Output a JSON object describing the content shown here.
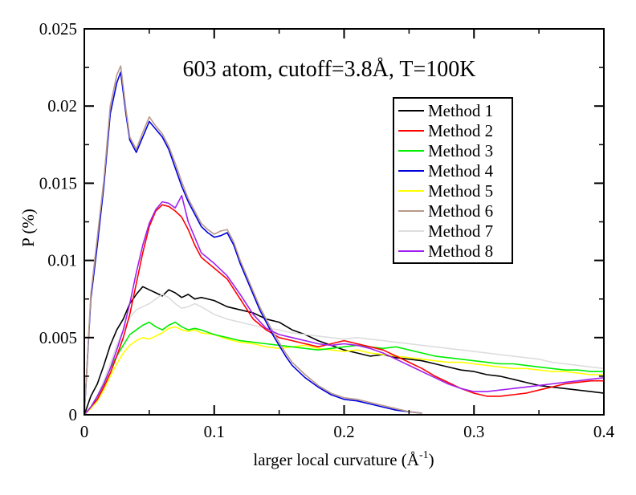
{
  "chart_data": {
    "type": "line",
    "title": "603 atom, cutoff=3.8Å, T=100K",
    "xlabel": "larger local curvature (Å",
    "xlabel_sup": "-1",
    "xlabel_close": ")",
    "ylabel": "P (%)",
    "xlim": [
      0,
      0.4
    ],
    "ylim": [
      0,
      0.025
    ],
    "xticks": [
      "0",
      "0.1",
      "0.2",
      "0.3",
      "0.4"
    ],
    "yticks": [
      "0",
      "0.005",
      "0.01",
      "0.015",
      "0.02",
      "0.025"
    ],
    "grid": false,
    "legend_position": "top-right",
    "series": [
      {
        "name": "Method 1",
        "color": "#000000",
        "z": 1,
        "x": [
          0,
          0.005,
          0.01,
          0.015,
          0.02,
          0.025,
          0.03,
          0.035,
          0.04,
          0.045,
          0.05,
          0.055,
          0.06,
          0.065,
          0.07,
          0.075,
          0.08,
          0.085,
          0.09,
          0.1,
          0.11,
          0.12,
          0.13,
          0.14,
          0.15,
          0.16,
          0.17,
          0.18,
          0.19,
          0.2,
          0.21,
          0.22,
          0.23,
          0.24,
          0.25,
          0.26,
          0.27,
          0.28,
          0.29,
          0.3,
          0.31,
          0.32,
          0.33,
          0.34,
          0.35,
          0.36,
          0.37,
          0.38,
          0.39,
          0.4
        ],
        "y": [
          0,
          0.0012,
          0.002,
          0.0032,
          0.0045,
          0.0055,
          0.0062,
          0.0072,
          0.0078,
          0.0083,
          0.0081,
          0.0079,
          0.0077,
          0.0081,
          0.0079,
          0.0076,
          0.0078,
          0.0075,
          0.0076,
          0.0074,
          0.007,
          0.0068,
          0.0066,
          0.0062,
          0.006,
          0.0055,
          0.0052,
          0.0048,
          0.0045,
          0.0042,
          0.004,
          0.0038,
          0.0039,
          0.0037,
          0.0036,
          0.0035,
          0.0033,
          0.0031,
          0.0029,
          0.0028,
          0.0026,
          0.0025,
          0.0023,
          0.0021,
          0.0019,
          0.0018,
          0.0017,
          0.0016,
          0.0015,
          0.0014
        ]
      },
      {
        "name": "Method 2",
        "color": "#ff0000",
        "z": 5,
        "x": [
          0,
          0.005,
          0.01,
          0.015,
          0.02,
          0.025,
          0.03,
          0.035,
          0.04,
          0.045,
          0.05,
          0.055,
          0.06,
          0.065,
          0.07,
          0.075,
          0.08,
          0.085,
          0.09,
          0.1,
          0.11,
          0.12,
          0.13,
          0.14,
          0.15,
          0.16,
          0.17,
          0.18,
          0.19,
          0.2,
          0.21,
          0.22,
          0.23,
          0.24,
          0.25,
          0.26,
          0.27,
          0.28,
          0.29,
          0.3,
          0.31,
          0.32,
          0.33,
          0.34,
          0.35,
          0.36,
          0.37,
          0.38,
          0.39,
          0.4
        ],
        "y": [
          0,
          0.0005,
          0.001,
          0.0018,
          0.0027,
          0.0038,
          0.005,
          0.0065,
          0.0085,
          0.0105,
          0.0122,
          0.0132,
          0.0136,
          0.0135,
          0.0132,
          0.0128,
          0.012,
          0.011,
          0.0102,
          0.0095,
          0.0088,
          0.0075,
          0.0062,
          0.0055,
          0.005,
          0.0048,
          0.0046,
          0.0044,
          0.0046,
          0.0048,
          0.0046,
          0.0044,
          0.0042,
          0.0038,
          0.0034,
          0.003,
          0.0025,
          0.0021,
          0.0017,
          0.0014,
          0.0012,
          0.0012,
          0.0013,
          0.0014,
          0.0016,
          0.0018,
          0.002,
          0.0021,
          0.0022,
          0.0022
        ]
      },
      {
        "name": "Method 3",
        "color": "#00ee00",
        "z": 4,
        "x": [
          0,
          0.005,
          0.01,
          0.015,
          0.02,
          0.025,
          0.03,
          0.035,
          0.04,
          0.045,
          0.05,
          0.055,
          0.06,
          0.065,
          0.07,
          0.075,
          0.08,
          0.085,
          0.09,
          0.1,
          0.11,
          0.12,
          0.13,
          0.14,
          0.15,
          0.16,
          0.17,
          0.18,
          0.19,
          0.2,
          0.21,
          0.22,
          0.23,
          0.24,
          0.25,
          0.26,
          0.27,
          0.28,
          0.29,
          0.3,
          0.31,
          0.32,
          0.33,
          0.34,
          0.35,
          0.36,
          0.37,
          0.38,
          0.39,
          0.4
        ],
        "y": [
          0,
          0.0005,
          0.0012,
          0.002,
          0.003,
          0.0038,
          0.0045,
          0.0052,
          0.0055,
          0.0058,
          0.006,
          0.0057,
          0.0055,
          0.0058,
          0.006,
          0.0057,
          0.0055,
          0.0056,
          0.0055,
          0.0052,
          0.005,
          0.0048,
          0.0047,
          0.0046,
          0.0045,
          0.0044,
          0.0043,
          0.0042,
          0.0043,
          0.0044,
          0.0045,
          0.0044,
          0.0043,
          0.0044,
          0.0042,
          0.004,
          0.0038,
          0.0037,
          0.0036,
          0.0035,
          0.0034,
          0.0033,
          0.0033,
          0.0032,
          0.0031,
          0.003,
          0.0029,
          0.0029,
          0.0028,
          0.0028
        ]
      },
      {
        "name": "Method 4",
        "color": "#0000dd",
        "z": 6,
        "x": [
          0,
          0.005,
          0.01,
          0.015,
          0.02,
          0.025,
          0.028,
          0.032,
          0.035,
          0.04,
          0.045,
          0.05,
          0.055,
          0.06,
          0.065,
          0.07,
          0.075,
          0.08,
          0.085,
          0.09,
          0.095,
          0.1,
          0.105,
          0.11,
          0.115,
          0.12,
          0.125,
          0.13,
          0.135,
          0.14,
          0.145,
          0.15,
          0.155,
          0.16,
          0.17,
          0.18,
          0.19,
          0.2,
          0.21,
          0.22,
          0.23,
          0.24,
          0.25,
          0.26
        ],
        "y": [
          0,
          0.0075,
          0.011,
          0.0148,
          0.0195,
          0.0215,
          0.0222,
          0.0195,
          0.0178,
          0.017,
          0.018,
          0.019,
          0.0185,
          0.018,
          0.0172,
          0.016,
          0.0148,
          0.0138,
          0.013,
          0.0122,
          0.0118,
          0.0115,
          0.0116,
          0.0118,
          0.011,
          0.0098,
          0.0088,
          0.0078,
          0.0068,
          0.006,
          0.0052,
          0.0045,
          0.0038,
          0.0032,
          0.0024,
          0.0018,
          0.0013,
          0.001,
          0.0009,
          0.0007,
          0.0005,
          0.0003,
          0.0002,
          0.0001
        ]
      },
      {
        "name": "Method 5",
        "color": "#ffff00",
        "z": 2,
        "x": [
          0,
          0.005,
          0.01,
          0.015,
          0.02,
          0.025,
          0.03,
          0.035,
          0.04,
          0.045,
          0.05,
          0.055,
          0.06,
          0.065,
          0.07,
          0.075,
          0.08,
          0.085,
          0.09,
          0.1,
          0.11,
          0.12,
          0.13,
          0.14,
          0.15,
          0.16,
          0.17,
          0.18,
          0.19,
          0.2,
          0.21,
          0.22,
          0.23,
          0.24,
          0.25,
          0.26,
          0.27,
          0.28,
          0.29,
          0.3,
          0.31,
          0.32,
          0.33,
          0.34,
          0.35,
          0.36,
          0.37,
          0.38,
          0.39,
          0.4
        ],
        "y": [
          0,
          0.0004,
          0.0009,
          0.0016,
          0.0025,
          0.0033,
          0.004,
          0.0045,
          0.0048,
          0.005,
          0.0049,
          0.0051,
          0.0053,
          0.0056,
          0.0057,
          0.0055,
          0.0054,
          0.0055,
          0.0053,
          0.0052,
          0.0049,
          0.0047,
          0.0046,
          0.0044,
          0.0043,
          0.0044,
          0.0045,
          0.0043,
          0.0042,
          0.0041,
          0.0042,
          0.004,
          0.0039,
          0.0038,
          0.0037,
          0.0036,
          0.0035,
          0.0034,
          0.0034,
          0.0033,
          0.0032,
          0.0031,
          0.003,
          0.003,
          0.0029,
          0.0028,
          0.0028,
          0.0027,
          0.0026,
          0.0026
        ]
      },
      {
        "name": "Method 6",
        "color": "#b8988a",
        "z": 7,
        "x": [
          0,
          0.005,
          0.01,
          0.015,
          0.02,
          0.025,
          0.028,
          0.032,
          0.035,
          0.04,
          0.045,
          0.05,
          0.055,
          0.06,
          0.065,
          0.07,
          0.075,
          0.08,
          0.085,
          0.09,
          0.095,
          0.1,
          0.105,
          0.11,
          0.115,
          0.12,
          0.125,
          0.13,
          0.135,
          0.14,
          0.145,
          0.15,
          0.155,
          0.16,
          0.17,
          0.18,
          0.19,
          0.2,
          0.21,
          0.22,
          0.23,
          0.24,
          0.25,
          0.26
        ],
        "y": [
          0,
          0.0078,
          0.0115,
          0.0152,
          0.02,
          0.022,
          0.0226,
          0.0198,
          0.018,
          0.0172,
          0.0183,
          0.0193,
          0.0187,
          0.0182,
          0.0174,
          0.0163,
          0.0151,
          0.014,
          0.0132,
          0.0124,
          0.012,
          0.0117,
          0.0119,
          0.012,
          0.0112,
          0.01,
          0.009,
          0.008,
          0.007,
          0.0062,
          0.0054,
          0.0047,
          0.004,
          0.0034,
          0.0026,
          0.0019,
          0.0014,
          0.0011,
          0.001,
          0.0008,
          0.0006,
          0.0004,
          0.0002,
          0.0001
        ]
      },
      {
        "name": "Method 7",
        "color": "#dddddd",
        "z": 3,
        "x": [
          0,
          0.005,
          0.01,
          0.015,
          0.02,
          0.025,
          0.03,
          0.035,
          0.04,
          0.045,
          0.05,
          0.055,
          0.06,
          0.065,
          0.07,
          0.075,
          0.08,
          0.085,
          0.09,
          0.1,
          0.11,
          0.12,
          0.13,
          0.14,
          0.15,
          0.16,
          0.17,
          0.18,
          0.19,
          0.2,
          0.21,
          0.22,
          0.23,
          0.24,
          0.25,
          0.26,
          0.27,
          0.28,
          0.29,
          0.3,
          0.31,
          0.32,
          0.33,
          0.34,
          0.35,
          0.36,
          0.37,
          0.38,
          0.39,
          0.4
        ],
        "y": [
          0,
          0.0005,
          0.0012,
          0.0022,
          0.0033,
          0.0045,
          0.0055,
          0.0063,
          0.0068,
          0.007,
          0.0072,
          0.0075,
          0.0078,
          0.0076,
          0.0072,
          0.0069,
          0.007,
          0.0072,
          0.007,
          0.0065,
          0.0062,
          0.006,
          0.0058,
          0.0056,
          0.0055,
          0.0053,
          0.0052,
          0.0051,
          0.005,
          0.0049,
          0.005,
          0.0049,
          0.0048,
          0.0047,
          0.0046,
          0.0045,
          0.0044,
          0.0043,
          0.0042,
          0.0041,
          0.004,
          0.0039,
          0.0038,
          0.0037,
          0.0036,
          0.0034,
          0.0033,
          0.0032,
          0.0031,
          0.003
        ]
      },
      {
        "name": "Method 8",
        "color": "#a020f0",
        "z": 8,
        "x": [
          0,
          0.005,
          0.01,
          0.015,
          0.02,
          0.025,
          0.03,
          0.035,
          0.04,
          0.045,
          0.05,
          0.055,
          0.06,
          0.065,
          0.07,
          0.075,
          0.08,
          0.085,
          0.09,
          0.1,
          0.11,
          0.12,
          0.13,
          0.14,
          0.15,
          0.16,
          0.17,
          0.18,
          0.19,
          0.2,
          0.21,
          0.22,
          0.23,
          0.24,
          0.25,
          0.26,
          0.27,
          0.28,
          0.29,
          0.3,
          0.31,
          0.32,
          0.33,
          0.34,
          0.35,
          0.36,
          0.37,
          0.38,
          0.39,
          0.4
        ],
        "y": [
          0,
          0.0005,
          0.0012,
          0.002,
          0.003,
          0.0042,
          0.0055,
          0.0072,
          0.0092,
          0.011,
          0.0124,
          0.0133,
          0.0138,
          0.0137,
          0.0134,
          0.0142,
          0.0125,
          0.0115,
          0.0105,
          0.0098,
          0.009,
          0.0078,
          0.0065,
          0.0056,
          0.0052,
          0.005,
          0.0048,
          0.0046,
          0.0045,
          0.0046,
          0.0045,
          0.0043,
          0.004,
          0.0036,
          0.0032,
          0.0028,
          0.0024,
          0.002,
          0.0017,
          0.0015,
          0.0015,
          0.0016,
          0.0017,
          0.0018,
          0.0019,
          0.002,
          0.0021,
          0.0022,
          0.0023,
          0.0024
        ]
      }
    ]
  }
}
